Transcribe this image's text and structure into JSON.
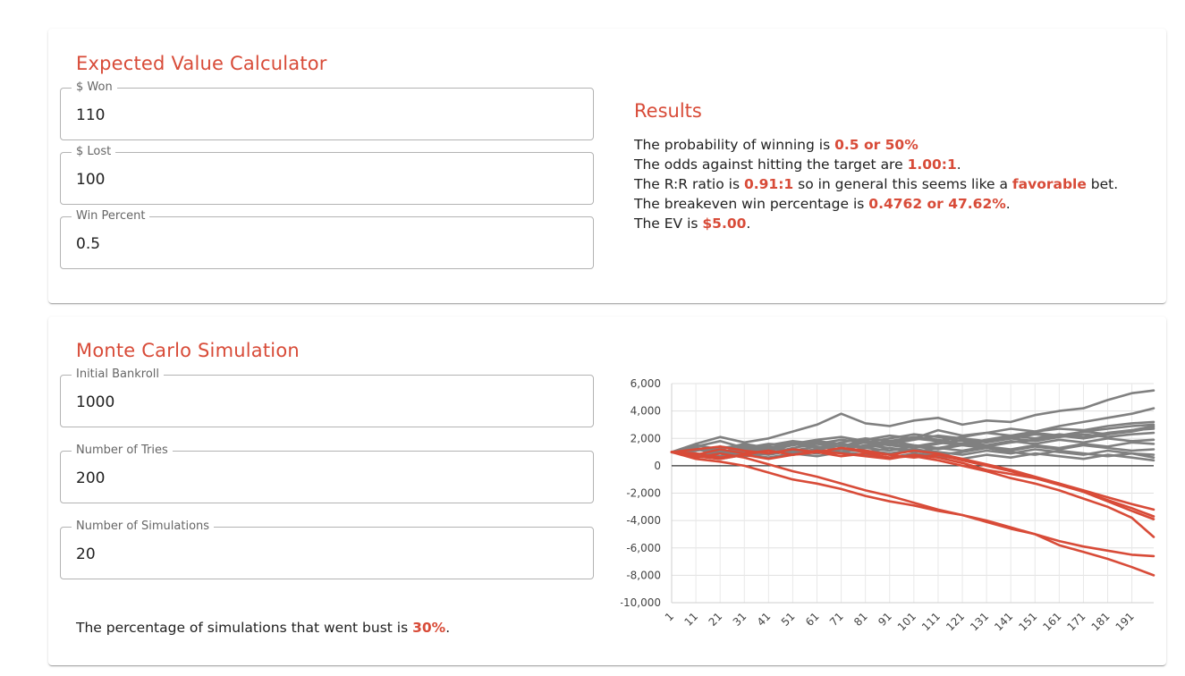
{
  "ev": {
    "title": "Expected Value Calculator",
    "fields": [
      {
        "label": "$ Won",
        "value": "110"
      },
      {
        "label": "$ Lost",
        "value": "100"
      },
      {
        "label": "Win Percent",
        "value": "0.5"
      }
    ],
    "results": {
      "title": "Results",
      "line1": {
        "prefix": "The probability of winning is ",
        "value": "0.5 or 50%"
      },
      "line2": {
        "prefix": "The odds against hitting the target are ",
        "value": "1.00:1",
        "suffix": "."
      },
      "line3": {
        "prefix": "The R:R ratio is ",
        "value": "0.91:1",
        "middle": " so in general this seems like a ",
        "value2": "favorable",
        "suffix": " bet."
      },
      "line4": {
        "prefix": "The breakeven win percentage is ",
        "value": "0.4762 or 47.62%",
        "suffix": "."
      },
      "line5": {
        "prefix": "The EV is ",
        "value": "$5.00",
        "suffix": "."
      }
    }
  },
  "mc": {
    "title": "Monte Carlo Simulation",
    "fields": [
      {
        "label": "Initial Bankroll",
        "value": "1000"
      },
      {
        "label": "Number of Tries",
        "value": "200"
      },
      {
        "label": "Number of Simulations",
        "value": "20"
      }
    ],
    "bust": {
      "prefix": "The percentage of simulations that went bust is ",
      "value": "30%",
      "suffix": "."
    }
  },
  "colors": {
    "accent": "#d84b38",
    "gray_series": "#808080",
    "bust_series": "#d84b38"
  },
  "chart_data": {
    "type": "line",
    "title": "",
    "xlabel": "",
    "ylabel": "",
    "ylim": [
      -10000,
      6000
    ],
    "yticks": [
      6000,
      4000,
      2000,
      0,
      -2000,
      -4000,
      -6000,
      -8000,
      -10000
    ],
    "ytick_labels": [
      "6,000",
      "4,000",
      "2,000",
      "0",
      "-2,000",
      "-4,000",
      "-6,000",
      "-8,000",
      "-10,000"
    ],
    "xlim": [
      1,
      200
    ],
    "xtick_labels": [
      "1",
      "11",
      "21",
      "31",
      "41",
      "51",
      "61",
      "71",
      "81",
      "91",
      "101",
      "111",
      "121",
      "131",
      "141",
      "151",
      "161",
      "171",
      "181",
      "191"
    ],
    "grid": true,
    "x": [
      1,
      11,
      21,
      31,
      41,
      51,
      61,
      71,
      81,
      91,
      101,
      111,
      121,
      131,
      141,
      151,
      161,
      171,
      181,
      191,
      200
    ],
    "series": [
      {
        "bust": false,
        "values": [
          1000,
          1600,
          2100,
          1700,
          2000,
          2500,
          3000,
          3800,
          3100,
          2900,
          3300,
          3500,
          3000,
          3300,
          3200,
          3700,
          4000,
          4200,
          4800,
          5300,
          5500
        ]
      },
      {
        "bust": false,
        "values": [
          1000,
          1400,
          1800,
          1300,
          1600,
          1500,
          1700,
          1400,
          1900,
          2200,
          2000,
          2600,
          2200,
          2400,
          2700,
          2500,
          2900,
          3200,
          3500,
          3800,
          4200
        ]
      },
      {
        "bust": false,
        "values": [
          1000,
          1200,
          900,
          1300,
          1100,
          1500,
          1800,
          1600,
          1400,
          1700,
          2000,
          1800,
          2100,
          2400,
          2200,
          2500,
          2700,
          2600,
          2900,
          3100,
          3200
        ]
      },
      {
        "bust": false,
        "values": [
          1000,
          800,
          1100,
          900,
          1300,
          1000,
          1200,
          1500,
          1300,
          1100,
          1400,
          1700,
          1500,
          1800,
          2000,
          2300,
          2100,
          2500,
          2700,
          2900,
          3000
        ]
      },
      {
        "bust": false,
        "values": [
          1000,
          1300,
          1000,
          1400,
          1200,
          1600,
          1300,
          1700,
          2000,
          1800,
          2100,
          1900,
          1600,
          1900,
          2200,
          2000,
          2300,
          2100,
          2400,
          2600,
          2700
        ]
      },
      {
        "bust": false,
        "values": [
          1000,
          700,
          1000,
          1200,
          900,
          1300,
          1600,
          1400,
          1700,
          1500,
          1300,
          1600,
          1900,
          1700,
          2000,
          1800,
          2100,
          2300,
          2100,
          2300,
          2400
        ]
      },
      {
        "bust": false,
        "values": [
          1000,
          1100,
          1400,
          1200,
          1500,
          1800,
          1600,
          1900,
          1700,
          2000,
          2300,
          2100,
          1800,
          1500,
          1800,
          1600,
          1900,
          1700,
          2000,
          1800,
          1900
        ]
      },
      {
        "bust": false,
        "values": [
          1000,
          900,
          700,
          1000,
          800,
          1100,
          1400,
          1200,
          1500,
          1300,
          1000,
          1300,
          1100,
          1400,
          1200,
          1500,
          1300,
          1600,
          1400,
          1700,
          1600
        ]
      },
      {
        "bust": false,
        "values": [
          1000,
          1300,
          1100,
          800,
          1100,
          900,
          1200,
          1000,
          1300,
          1600,
          1400,
          1200,
          1500,
          1300,
          1100,
          1400,
          1200,
          1500,
          1300,
          1100,
          1200
        ]
      },
      {
        "bust": false,
        "values": [
          1000,
          800,
          1000,
          700,
          900,
          1200,
          1000,
          1300,
          1100,
          900,
          1200,
          1000,
          800,
          1100,
          900,
          1200,
          1000,
          800,
          1100,
          900,
          800
        ]
      },
      {
        "bust": false,
        "values": [
          1000,
          1200,
          900,
          1100,
          1400,
          1100,
          900,
          1200,
          1000,
          1300,
          1100,
          800,
          1000,
          1300,
          1000,
          800,
          1100,
          900,
          700,
          900,
          600
        ]
      },
      {
        "bust": false,
        "values": [
          1000,
          700,
          500,
          800,
          600,
          900,
          700,
          1000,
          800,
          600,
          900,
          700,
          500,
          800,
          600,
          900,
          700,
          500,
          800,
          600,
          400
        ]
      },
      {
        "bust": false,
        "values": [
          1000,
          1500,
          1200,
          1600,
          1300,
          1700,
          1400,
          1200,
          1500,
          1800,
          1500,
          1300,
          1600,
          1400,
          1700,
          1900,
          2200,
          2000,
          2300,
          2500,
          2800
        ]
      },
      {
        "bust": false,
        "values": [
          1000,
          1100,
          1300,
          1500,
          1300,
          1600,
          1900,
          2100,
          1800,
          1600,
          1900,
          2200,
          2000,
          1800,
          2100,
          2400,
          2200,
          2500,
          2300,
          2600,
          2900
        ]
      },
      {
        "bust": true,
        "values": [
          1000,
          500,
          300,
          0,
          -500,
          -1000,
          -1300,
          -1700,
          -2200,
          -2600,
          -2900,
          -3300,
          -3600,
          -4100,
          -4600,
          -5000,
          -5800,
          -6300,
          -6800,
          -7400,
          -8000
        ]
      },
      {
        "bust": true,
        "values": [
          1000,
          600,
          900,
          600,
          100,
          -400,
          -800,
          -1300,
          -1800,
          -2200,
          -2700,
          -3200,
          -3600,
          -4000,
          -4500,
          -5000,
          -5500,
          -5900,
          -6200,
          -6500,
          -6600
        ]
      },
      {
        "bust": true,
        "values": [
          1000,
          800,
          1200,
          900,
          1100,
          800,
          1000,
          700,
          900,
          600,
          700,
          400,
          0,
          -400,
          -900,
          -1300,
          -1800,
          -2400,
          -3000,
          -3800,
          -5200
        ]
      },
      {
        "bust": true,
        "values": [
          1000,
          700,
          500,
          800,
          1100,
          800,
          1100,
          900,
          700,
          500,
          800,
          600,
          200,
          -300,
          -600,
          -900,
          -1300,
          -1900,
          -2600,
          -3300,
          -3900
        ]
      },
      {
        "bust": true,
        "values": [
          1000,
          900,
          600,
          800,
          500,
          800,
          1000,
          1300,
          1100,
          800,
          600,
          800,
          400,
          0,
          -400,
          -900,
          -1400,
          -1900,
          -2500,
          -3100,
          -3700
        ]
      },
      {
        "bust": true,
        "values": [
          1000,
          1200,
          1400,
          1100,
          900,
          1200,
          1000,
          1300,
          1000,
          800,
          1100,
          900,
          500,
          100,
          -300,
          -800,
          -1300,
          -1800,
          -2300,
          -2800,
          -3200
        ]
      }
    ]
  }
}
